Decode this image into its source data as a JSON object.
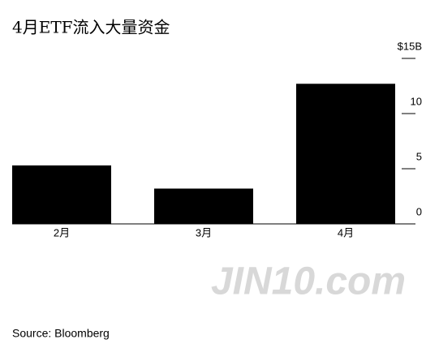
{
  "chart_data": {
    "type": "bar",
    "title": "4月ETF流入大量资金",
    "categories": [
      "2月",
      "3月",
      "4月"
    ],
    "values": [
      5.3,
      3.2,
      12.7
    ],
    "color": "#000000",
    "ylim": [
      0,
      15
    ],
    "yticks": [
      0,
      5,
      10,
      {
        "value": 15,
        "label": "$15B"
      }
    ],
    "source": "Source: Bloomberg",
    "watermark": "JIN10.com"
  }
}
